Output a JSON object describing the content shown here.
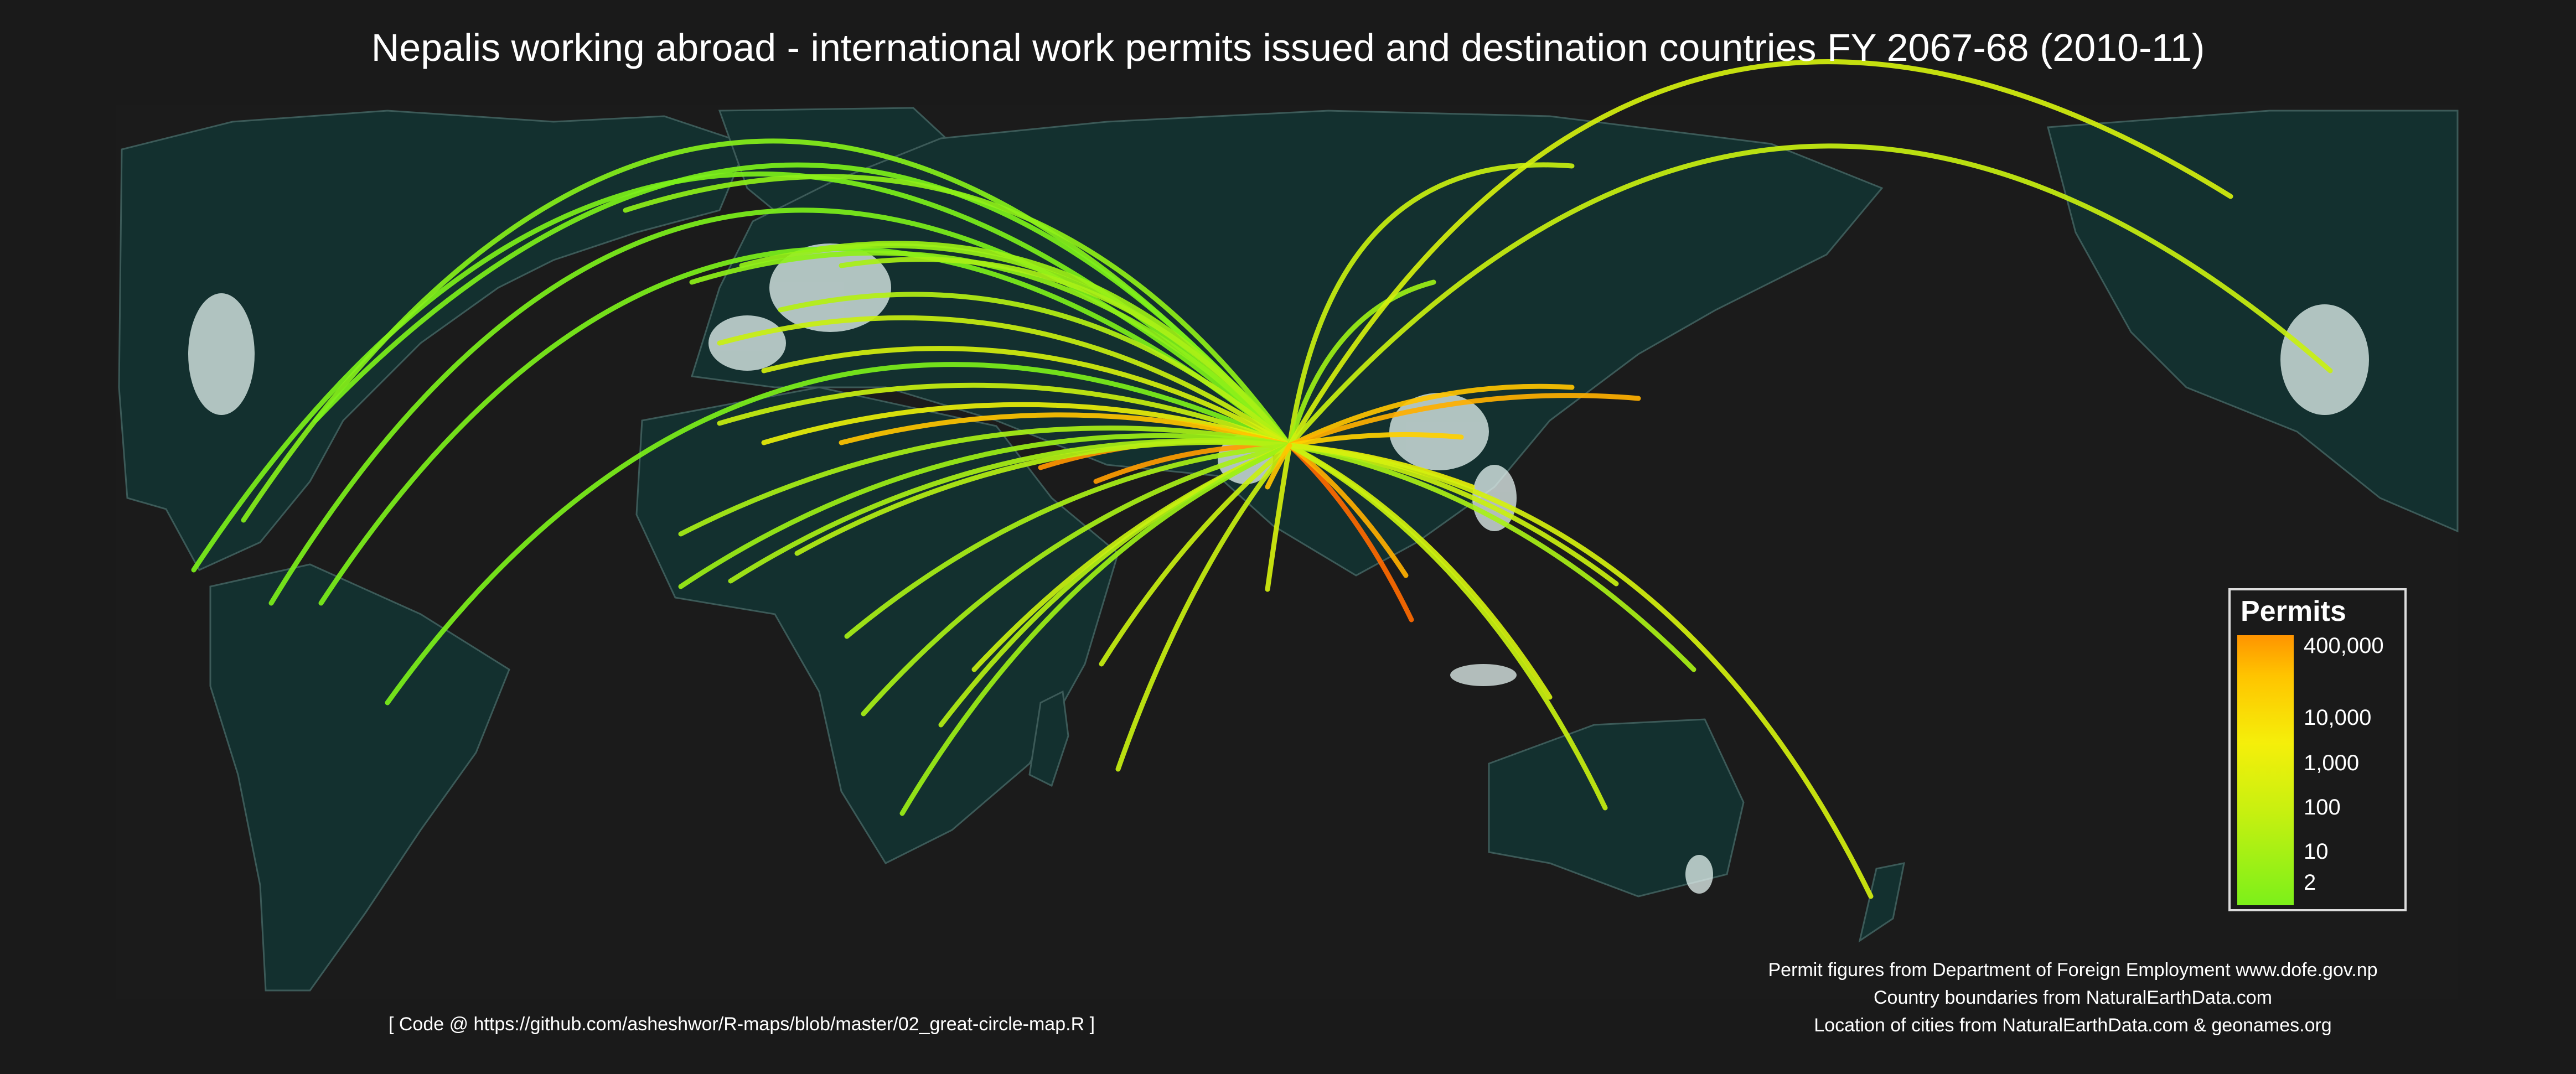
{
  "title": "Nepalis working abroad - international work permits issued and destination countries FY 2067-68 (2010-11)",
  "code_credit": "[ Code @ https://github.com/asheshwor/R-maps/blob/master/02_great-circle-map.R ]",
  "source_lines": [
    "Permit figures from Department of Foreign Employment www.dofe.gov.np",
    "Country boundaries from NaturalEarthData.com",
    "Location of cities from NaturalEarthData.com & geonames.org"
  ],
  "legend": {
    "title": "Permits",
    "ticks": [
      "400,000",
      "10,000",
      "1,000",
      "100",
      "10",
      "2"
    ],
    "scale": "log",
    "colors": [
      "#7cf01a",
      "#c8f010",
      "#f5ef0a",
      "#ffc400",
      "#ff9400"
    ]
  },
  "colors": {
    "background": "#1a1a1a",
    "ocean": "#1b1b1b",
    "land": "#13302f",
    "border": "#3c5a58",
    "city_lights": "#e6f4f2",
    "frame": "#dddddd"
  }
}
